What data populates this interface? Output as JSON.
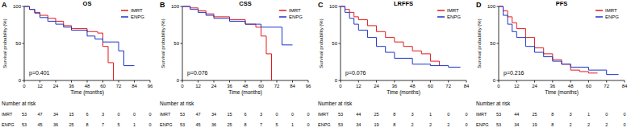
{
  "chart_data": [
    {
      "type": "step",
      "panel": "A",
      "title": "OS",
      "x_label": "Time (months)",
      "y_label": "Survival probability (%)",
      "xlim": [
        0,
        96
      ],
      "xticks": [
        0,
        12,
        24,
        36,
        48,
        60,
        72,
        84,
        96
      ],
      "ylim": [
        0,
        100
      ],
      "yticks": [
        0,
        50,
        100
      ],
      "legend": "top-right",
      "annotation": "p=0.401",
      "series": [
        {
          "name": "IMRT",
          "color": "#e41a1c",
          "x": [
            0,
            4,
            8,
            12,
            18,
            24,
            30,
            36,
            48,
            56,
            60,
            64,
            68
          ],
          "values": [
            100,
            96,
            92,
            88,
            84,
            80,
            74,
            70,
            66,
            64,
            46,
            24,
            0
          ]
        },
        {
          "name": "ENPG",
          "color": "#1c35c9",
          "x": [
            0,
            4,
            8,
            12,
            18,
            24,
            30,
            36,
            48,
            54,
            60,
            72,
            76,
            84
          ],
          "values": [
            100,
            96,
            91,
            85,
            80,
            76,
            72,
            68,
            60,
            56,
            52,
            40,
            20,
            20
          ]
        }
      ],
      "risk_title": "Number at risk",
      "risk_table": [
        {
          "name": "IMRT",
          "values": [
            53,
            47,
            34,
            15,
            6,
            3,
            0,
            0,
            0
          ]
        },
        {
          "name": "ENPG",
          "values": [
            53,
            45,
            36,
            25,
            8,
            7,
            5,
            1,
            0
          ]
        }
      ]
    },
    {
      "type": "step",
      "panel": "B",
      "title": "CSS",
      "x_label": "Time (months)",
      "y_label": "Survival probability (%)",
      "xlim": [
        0,
        96
      ],
      "xticks": [
        0,
        12,
        24,
        36,
        48,
        60,
        72,
        84,
        96
      ],
      "ylim": [
        0,
        100
      ],
      "yticks": [
        0,
        50,
        100
      ],
      "legend": "top-right",
      "annotation": "p=0.076",
      "series": [
        {
          "name": "IMRT",
          "color": "#e41a1c",
          "x": [
            0,
            6,
            12,
            18,
            24,
            36,
            48,
            56,
            60,
            64,
            68
          ],
          "values": [
            100,
            98,
            94,
            90,
            86,
            82,
            76,
            72,
            60,
            36,
            0
          ]
        },
        {
          "name": "ENPG",
          "color": "#1c35c9",
          "x": [
            0,
            6,
            12,
            18,
            24,
            36,
            48,
            60,
            72,
            76,
            84
          ],
          "values": [
            100,
            96,
            92,
            88,
            84,
            80,
            76,
            72,
            72,
            48,
            48
          ]
        }
      ],
      "risk_title": "Number at risk",
      "risk_table": [
        {
          "name": "IMRT",
          "values": [
            53,
            47,
            34,
            15,
            6,
            3,
            0,
            0,
            0
          ]
        },
        {
          "name": "ENPG",
          "values": [
            53,
            45,
            36,
            25,
            8,
            7,
            5,
            1,
            0
          ]
        }
      ]
    },
    {
      "type": "step",
      "panel": "C",
      "title": "LRFFS",
      "x_label": "Time (months)",
      "y_label": "Survival probability (%)",
      "xlim": [
        0,
        84
      ],
      "xticks": [
        0,
        12,
        24,
        36,
        48,
        60,
        72,
        84
      ],
      "ylim": [
        0,
        100
      ],
      "yticks": [
        0,
        50,
        100
      ],
      "legend": "top-right",
      "annotation": "p=0.076",
      "series": [
        {
          "name": "IMRT",
          "color": "#e41a1c",
          "x": [
            0,
            3,
            6,
            9,
            12,
            18,
            24,
            30,
            36,
            42,
            48,
            54,
            60,
            66
          ],
          "values": [
            100,
            96,
            92,
            86,
            82,
            74,
            66,
            58,
            52,
            46,
            40,
            36,
            26,
            20
          ]
        },
        {
          "name": "ENPG",
          "color": "#1c35c9",
          "x": [
            0,
            3,
            6,
            9,
            12,
            18,
            24,
            30,
            36,
            48,
            60,
            72,
            80
          ],
          "values": [
            100,
            92,
            84,
            76,
            68,
            58,
            46,
            38,
            30,
            22,
            20,
            18,
            18
          ]
        }
      ],
      "risk_title": "Number at risk",
      "risk_table": [
        {
          "name": "IMRT",
          "values": [
            53,
            44,
            25,
            8,
            3,
            1,
            0,
            0
          ]
        },
        {
          "name": "ENPG",
          "values": [
            53,
            34,
            19,
            8,
            2,
            2,
            2,
            0
          ]
        }
      ]
    },
    {
      "type": "step",
      "panel": "D",
      "title": "PFS",
      "x_label": "Time (months)",
      "y_label": "Survival probability (%)",
      "xlim": [
        0,
        84
      ],
      "xticks": [
        0,
        12,
        24,
        36,
        48,
        60,
        72,
        84
      ],
      "ylim": [
        0,
        100
      ],
      "yticks": [
        0,
        50,
        100
      ],
      "legend": "top-right",
      "annotation": "p=0.216",
      "series": [
        {
          "name": "IMRT",
          "color": "#e41a1c",
          "x": [
            0,
            3,
            6,
            9,
            12,
            18,
            24,
            30,
            36,
            42,
            48,
            54,
            60,
            66
          ],
          "values": [
            100,
            94,
            86,
            78,
            70,
            58,
            44,
            36,
            28,
            22,
            14,
            12,
            10,
            10
          ]
        },
        {
          "name": "ENPG",
          "color": "#1c35c9",
          "x": [
            0,
            3,
            6,
            9,
            12,
            18,
            24,
            30,
            36,
            42,
            48,
            60,
            72,
            80
          ],
          "values": [
            100,
            88,
            76,
            66,
            58,
            46,
            38,
            32,
            26,
            22,
            18,
            14,
            8,
            8
          ]
        }
      ],
      "risk_title": "Number at risk",
      "risk_table": [
        {
          "name": "IMRT",
          "values": [
            53,
            44,
            25,
            8,
            3,
            1,
            0,
            0
          ]
        },
        {
          "name": "ENPG",
          "values": [
            53,
            34,
            19,
            8,
            2,
            2,
            2,
            0
          ]
        }
      ]
    }
  ]
}
